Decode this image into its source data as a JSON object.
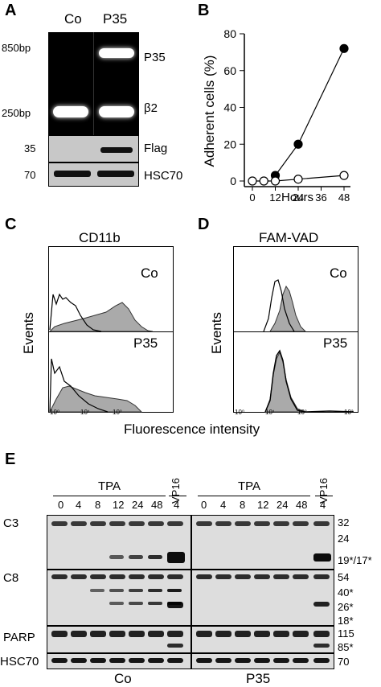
{
  "panels": {
    "a": {
      "letter": "A",
      "lanes": [
        "Co",
        "P35"
      ],
      "size_markers": [
        "850bp",
        "250bp",
        "35",
        "70"
      ],
      "band_labels": [
        "P35",
        "β2",
        "Flag",
        "HSC70"
      ]
    },
    "b": {
      "letter": "B",
      "ylabel": "Adherent cells (%)",
      "xlabel": "Hours",
      "xticks": [
        "0",
        "12",
        "24",
        "36",
        "48"
      ],
      "yticks": [
        "0",
        "20",
        "40",
        "60",
        "80"
      ]
    },
    "c": {
      "letter": "C",
      "title": "CD11b",
      "ylabel": "Events",
      "rows": [
        "Co",
        "P35"
      ]
    },
    "d": {
      "letter": "D",
      "title": "FAM-VAD",
      "ylabel": "Events",
      "rows": [
        "Co",
        "P35"
      ]
    },
    "cd_xlabel": "Fluorescence intensity",
    "log_ticks": [
      "10⁰",
      "10¹",
      "10²",
      "10³"
    ],
    "e": {
      "letter": "E",
      "tpa": "TPA",
      "vp16": "VP16",
      "times": [
        "0",
        "4",
        "8",
        "12",
        "24",
        "48"
      ],
      "vp16_time": "4",
      "groups": [
        "Co",
        "P35"
      ],
      "rows": [
        "C3",
        "C8",
        "PARP",
        "HSC70"
      ],
      "markers": [
        "32",
        "24",
        "19*/17*",
        "54",
        "40*",
        "26*",
        "18*",
        "115",
        "85*",
        "70"
      ]
    }
  },
  "chart_data": {
    "type": "line",
    "xlabel": "Hours",
    "ylabel": "Adherent cells (%)",
    "xlim": [
      0,
      48
    ],
    "ylim": [
      0,
      80
    ],
    "series": [
      {
        "marker": "filled",
        "x": [
          12,
          24,
          48
        ],
        "y": [
          3,
          20,
          72
        ]
      },
      {
        "marker": "open",
        "x": [
          0,
          6,
          12,
          24,
          48
        ],
        "y": [
          0,
          0,
          0,
          1,
          3
        ]
      }
    ]
  }
}
